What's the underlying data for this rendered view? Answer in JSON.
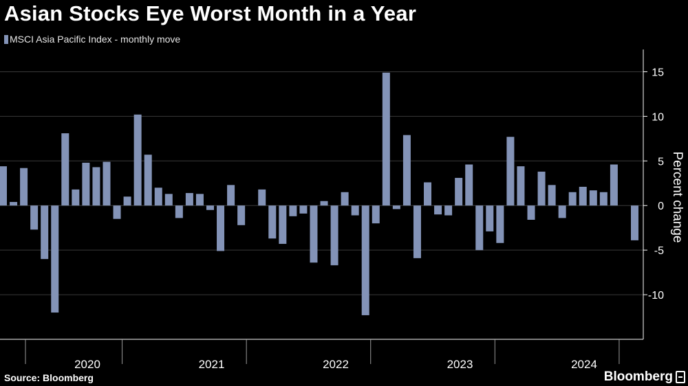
{
  "header": {
    "title": "Asian Stocks Eye Worst Month in a Year"
  },
  "footer": {
    "source": "Source: Bloomberg",
    "brand": "Bloomberg",
    "brand_icon": "bloomberg-logo-icon"
  },
  "colors": {
    "background": "#000000",
    "bar": "#8393b7",
    "text": "#ffffff",
    "axis": "#ffffff",
    "grid": "#3a3a3a"
  },
  "chart_data": {
    "type": "bar",
    "title": "Asian Stocks Eye Worst Month in a Year",
    "xlabel": "",
    "ylabel": "Percent change",
    "ylim": [
      -15,
      17.5
    ],
    "yticks": [
      15,
      10,
      5,
      0,
      -5,
      -10
    ],
    "grid": true,
    "legend": "top-left",
    "year_labels": [
      "2020",
      "2021",
      "2022",
      "2023",
      "2024"
    ],
    "series": [
      {
        "name": "MSCI Asia Pacific Index - monthly move",
        "values": [
          4.4,
          0.4,
          4.2,
          -2.7,
          -6.0,
          -12.0,
          8.1,
          1.8,
          4.8,
          4.3,
          4.9,
          -1.5,
          1.0,
          10.2,
          5.7,
          2.0,
          1.3,
          -1.4,
          1.4,
          1.3,
          -0.5,
          -5.1,
          2.3,
          -2.2,
          0.0,
          1.8,
          -3.7,
          -4.3,
          -1.2,
          -0.9,
          -6.4,
          0.5,
          -6.7,
          1.5,
          -1.1,
          -12.3,
          -2.0,
          14.9,
          -0.4,
          7.9,
          -5.9,
          2.6,
          -1.0,
          -1.1,
          3.1,
          4.6,
          -5.0,
          -2.9,
          -4.2,
          7.7,
          4.4,
          -1.6,
          3.8,
          2.3,
          -1.4,
          1.5,
          2.1,
          1.7,
          1.5,
          4.6,
          0.0,
          -3.9
        ]
      }
    ]
  }
}
